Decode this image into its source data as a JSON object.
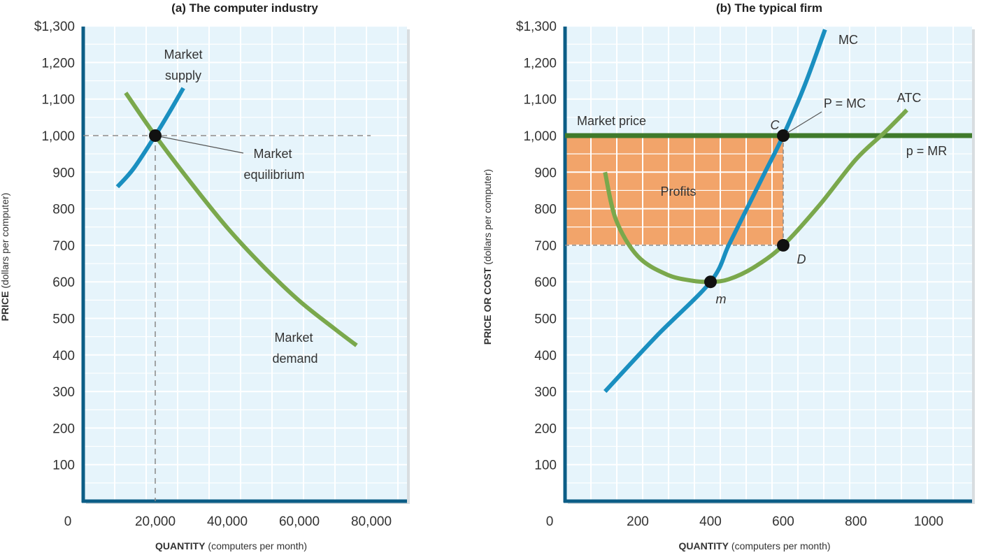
{
  "chart_data": [
    {
      "type": "line",
      "title": "(a) The computer industry",
      "xlabel_bold": "QUANTITY",
      "xlabel_rest": " (computers per month)",
      "ylabel_bold": "PRICE",
      "ylabel_rest": " (dollars per computer)",
      "xlim": [
        0,
        90000
      ],
      "ylim": [
        0,
        1300
      ],
      "x_ticks": [
        0,
        20000,
        40000,
        60000,
        80000
      ],
      "x_tick_labels": [
        "0",
        "20,000",
        "40,000",
        "60,000",
        "80,000"
      ],
      "y_ticks": [
        100,
        200,
        300,
        400,
        500,
        600,
        700,
        800,
        900,
        1000,
        1100,
        1200,
        1300
      ],
      "y_tick_labels": [
        "100",
        "200",
        "300",
        "400",
        "500",
        "600",
        "700",
        "800",
        "900",
        "1,000",
        "1,100",
        "1,200",
        "$1,300"
      ],
      "grid": true,
      "series": [
        {
          "name": "Market supply",
          "color": "#1a8fc0",
          "points": [
            [
              9500,
              860
            ],
            [
              14000,
              910
            ],
            [
              20000,
              1000
            ],
            [
              24000,
              1065
            ],
            [
              27800,
              1130
            ]
          ]
        },
        {
          "name": "Market demand",
          "color": "#7aa84c",
          "points": [
            [
              11800,
              1117
            ],
            [
              20000,
              1000
            ],
            [
              30000,
              870
            ],
            [
              40000,
              748
            ],
            [
              50000,
              642
            ],
            [
              60000,
              548
            ],
            [
              70000,
              470
            ],
            [
              75900,
              426
            ]
          ]
        }
      ],
      "annotations": {
        "supply_label": [
          "Market",
          "supply"
        ],
        "demand_label": [
          "Market",
          "demand"
        ],
        "equilibrium_label": [
          "Market",
          "equilibrium"
        ],
        "equilibrium_point": [
          20000,
          1000
        ]
      }
    },
    {
      "type": "line",
      "title": "(b) The typical firm",
      "xlabel_bold": "QUANTITY",
      "xlabel_rest": " (computers per month)",
      "ylabel_bold": "PRICE OR COST",
      "ylabel_rest": " (dollars per computer)",
      "xlim": [
        0,
        1120
      ],
      "ylim": [
        0,
        1300
      ],
      "x_ticks": [
        0,
        200,
        400,
        600,
        800,
        1000
      ],
      "x_tick_labels": [
        "0",
        "200",
        "400",
        "600",
        "800",
        "1000"
      ],
      "y_ticks": [
        100,
        200,
        300,
        400,
        500,
        600,
        700,
        800,
        900,
        1000,
        1100,
        1200,
        1300
      ],
      "y_tick_labels": [
        "100",
        "200",
        "300",
        "400",
        "500",
        "600",
        "700",
        "800",
        "900",
        "1,000",
        "1,100",
        "1,200",
        "$1,300"
      ],
      "grid": true,
      "market_price": 1000,
      "profit_region": {
        "label": "Profits",
        "x": [
          0,
          600
        ],
        "y": [
          700,
          1000
        ],
        "color": "#f2a46a"
      },
      "series": [
        {
          "name": "MC",
          "color": "#1a8fc0",
          "points": [
            [
              110,
              300
            ],
            [
              250,
              450
            ],
            [
              400,
              600
            ],
            [
              450,
              700
            ],
            [
              500,
              800
            ],
            [
              550,
              900
            ],
            [
              600,
              1000
            ],
            [
              660,
              1140
            ],
            [
              715,
              1290
            ]
          ]
        },
        {
          "name": "ATC",
          "color": "#7aa84c",
          "points": [
            [
              110,
              900
            ],
            [
              140,
              770
            ],
            [
              200,
              670
            ],
            [
              280,
              620
            ],
            [
              350,
              603
            ],
            [
              400,
              600
            ],
            [
              450,
              607
            ],
            [
              520,
              640
            ],
            [
              600,
              700
            ],
            [
              700,
              810
            ],
            [
              800,
              935
            ],
            [
              880,
              1010
            ],
            [
              940,
              1070
            ]
          ]
        }
      ],
      "annotations": {
        "market_price_label": "Market price",
        "p_mr_label": "p = MR",
        "p_mc_label": "P = MC",
        "point_C": {
          "label": "C",
          "at": [
            600,
            1000
          ]
        },
        "point_D": {
          "label": "D",
          "at": [
            600,
            700
          ]
        },
        "point_m": {
          "label": "m",
          "at": [
            400,
            600
          ]
        }
      }
    }
  ]
}
